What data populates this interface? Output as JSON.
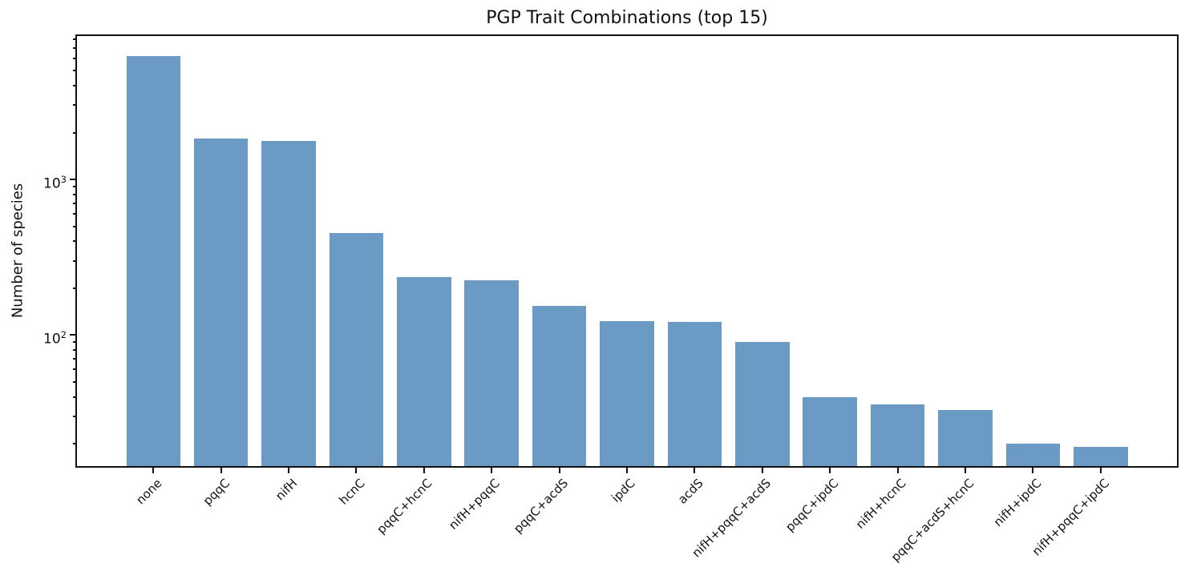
{
  "figure": {
    "background": "#ffffff"
  },
  "chart_data": {
    "type": "bar",
    "title": "PGP Trait Combinations (top 15)",
    "xlabel": "",
    "ylabel": "Number of species",
    "yscale": "log",
    "categories": [
      "none",
      "pqqC",
      "nifH",
      "hcnC",
      "pqqC+hcnC",
      "nifH+pqqC",
      "pqqC+acdS",
      "ipdC",
      "acdS",
      "nifH+pqqC+acdS",
      "pqqC+ipdC",
      "nifH+hcnC",
      "pqqC+acdS+hcnC",
      "nifH+ipdC",
      "nifH+pqqC+ipdC"
    ],
    "values": [
      6200,
      1840,
      1760,
      450,
      236,
      225,
      154,
      123,
      121,
      90,
      40,
      36,
      33,
      20,
      19
    ],
    "ylim": [
      14.2,
      8450
    ],
    "xlim": [
      -1.14,
      15.14
    ],
    "bar_width": 0.8,
    "bar_color": "#6b9ac4",
    "axis_color": "#111111",
    "y_major_ticks": [
      100,
      1000
    ],
    "y_tick_labels": [
      "10²",
      "10³"
    ],
    "y_minor_ticks": [
      20,
      30,
      40,
      50,
      60,
      70,
      80,
      90,
      200,
      300,
      400,
      500,
      600,
      700,
      800,
      900,
      2000,
      3000,
      4000,
      5000,
      6000,
      7000,
      8000
    ],
    "x_tick_rotation": 45,
    "grid": false,
    "legend": null
  }
}
